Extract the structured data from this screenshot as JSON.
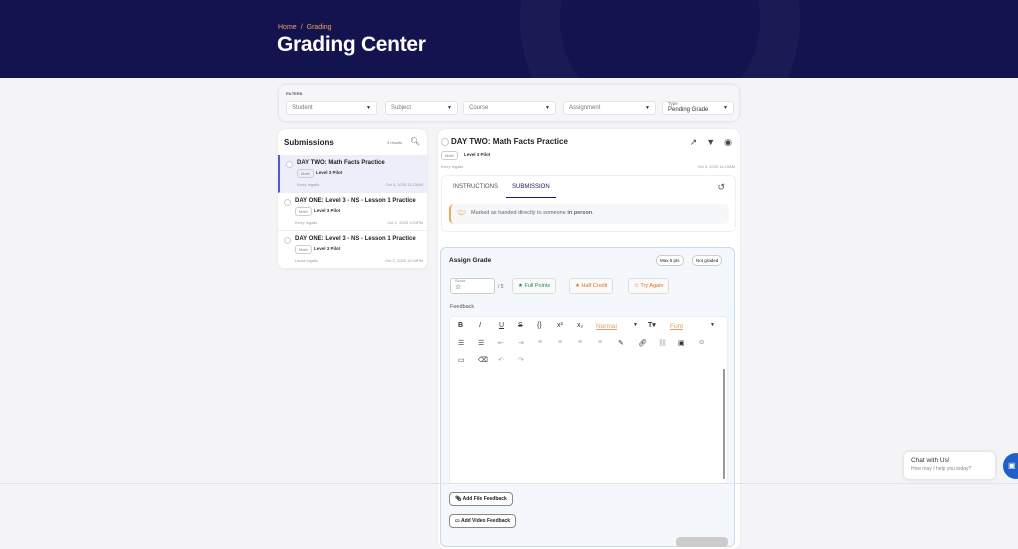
{
  "breadcrumb": [
    "Home",
    "/",
    "Grading"
  ],
  "page_title": "Grading Center",
  "filters": {
    "label": "FILTERS",
    "student": "Student",
    "subject": "Subject",
    "course": "Course",
    "assignment": "Assignment",
    "type_label": "Type",
    "type_value": "Pending Grade"
  },
  "submissions": {
    "title": "Submissions",
    "count": "3 results",
    "items": [
      {
        "name": "DAY TWO: Math Facts Practice",
        "tag": "Math",
        "level": "Level 3 Pilot",
        "student": "Kerry Ingalls",
        "date": "Oct 3, 2025 11:23AM"
      },
      {
        "name": "DAY ONE: Level 3 - NS - Lesson 1 Practice",
        "tag": "Math",
        "level": "Level 3 Pilot",
        "student": "Kerry Ingalls",
        "date": "Oct 2, 2025 3:04PM"
      },
      {
        "name": "DAY ONE: Level 3 - NS - Lesson 1 Practice",
        "tag": "Math",
        "level": "Level 3 Pilot",
        "student": "Laura Ingalls",
        "date": "Oct 2, 2025 10:34PM"
      }
    ]
  },
  "detail": {
    "title": "DAY TWO: Math Facts Practice",
    "tag": "Math",
    "level": "Level 3 Pilot",
    "student": "Kerry Ingalls",
    "date": "Oct 3, 2025 11:23AM",
    "tabs": [
      "INSTRUCTIONS",
      "SUBMISSION"
    ],
    "note_pre": "Marked as handed directly to someone ",
    "note_bold": "in person",
    "note_post": "."
  },
  "grade": {
    "title": "Assign Grade",
    "max": "Max 5 pts",
    "status": "Not graded",
    "score_label": "Score",
    "score_value": "☆",
    "out_of": "/ 5",
    "full": "Full Points",
    "half": "Half Credit",
    "retry": "Try Again",
    "feedback_label": "Feedback",
    "format_normal": "Normal",
    "format_font": "Font",
    "add_file": "Add File Feedback",
    "add_video": "Add Video Feedback"
  },
  "colors": {
    "header": "#13134f",
    "accent": "#5656d8",
    "orange": "#f0a35a",
    "green": "#1f8a5a"
  },
  "chat": {
    "title": "Chat with Us!",
    "subtitle": "How may I help you today?"
  }
}
